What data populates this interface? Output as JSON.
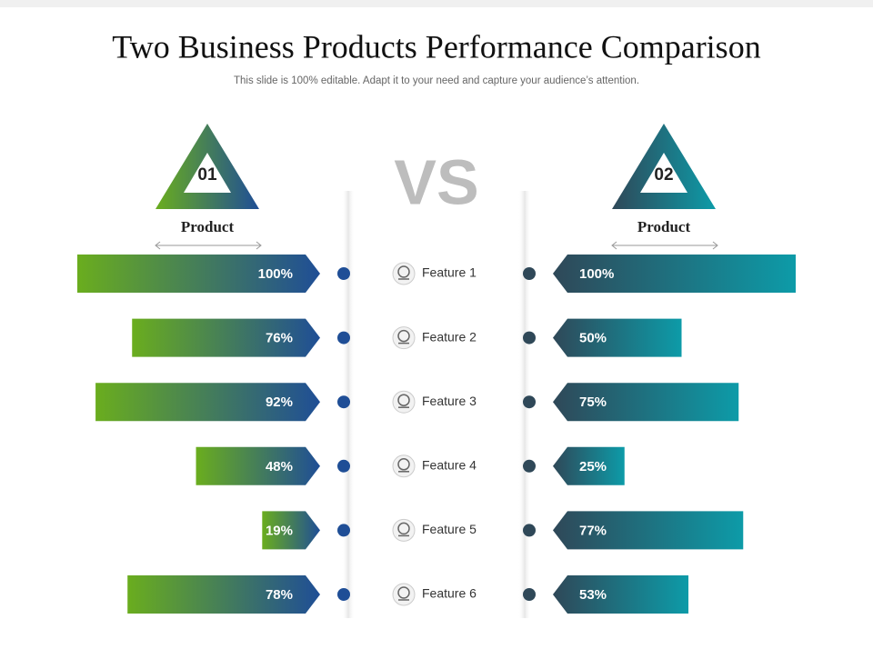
{
  "chart_data": {
    "type": "butterfly-bar",
    "title": "Two Business Products Performance Comparison",
    "subtitle": "This slide is 100% editable. Adapt it to your need and capture your audience’s attention.",
    "center_label": "VS",
    "categories": [
      "Feature 1",
      "Feature 2",
      "Feature 3",
      "Feature 4",
      "Feature 5",
      "Feature 6"
    ],
    "xlim": [
      0,
      100
    ],
    "series": [
      {
        "name": "Product",
        "badge": "01",
        "colors": [
          "#6aad1e",
          "#1f4e96"
        ],
        "dot_color": "#1f4e96",
        "values": [
          100,
          76,
          92,
          48,
          19,
          78
        ],
        "value_labels": [
          "100%",
          "76%",
          "92%",
          "48%",
          "19%",
          "78%"
        ]
      },
      {
        "name": "Product",
        "badge": "02",
        "colors": [
          "#2f4858",
          "#0d9ba8"
        ],
        "dot_color": "#2f4858",
        "values": [
          100,
          50,
          75,
          25,
          77,
          53
        ],
        "value_labels": [
          "100%",
          "50%",
          "75%",
          "25%",
          "77%",
          "53%"
        ]
      }
    ]
  }
}
